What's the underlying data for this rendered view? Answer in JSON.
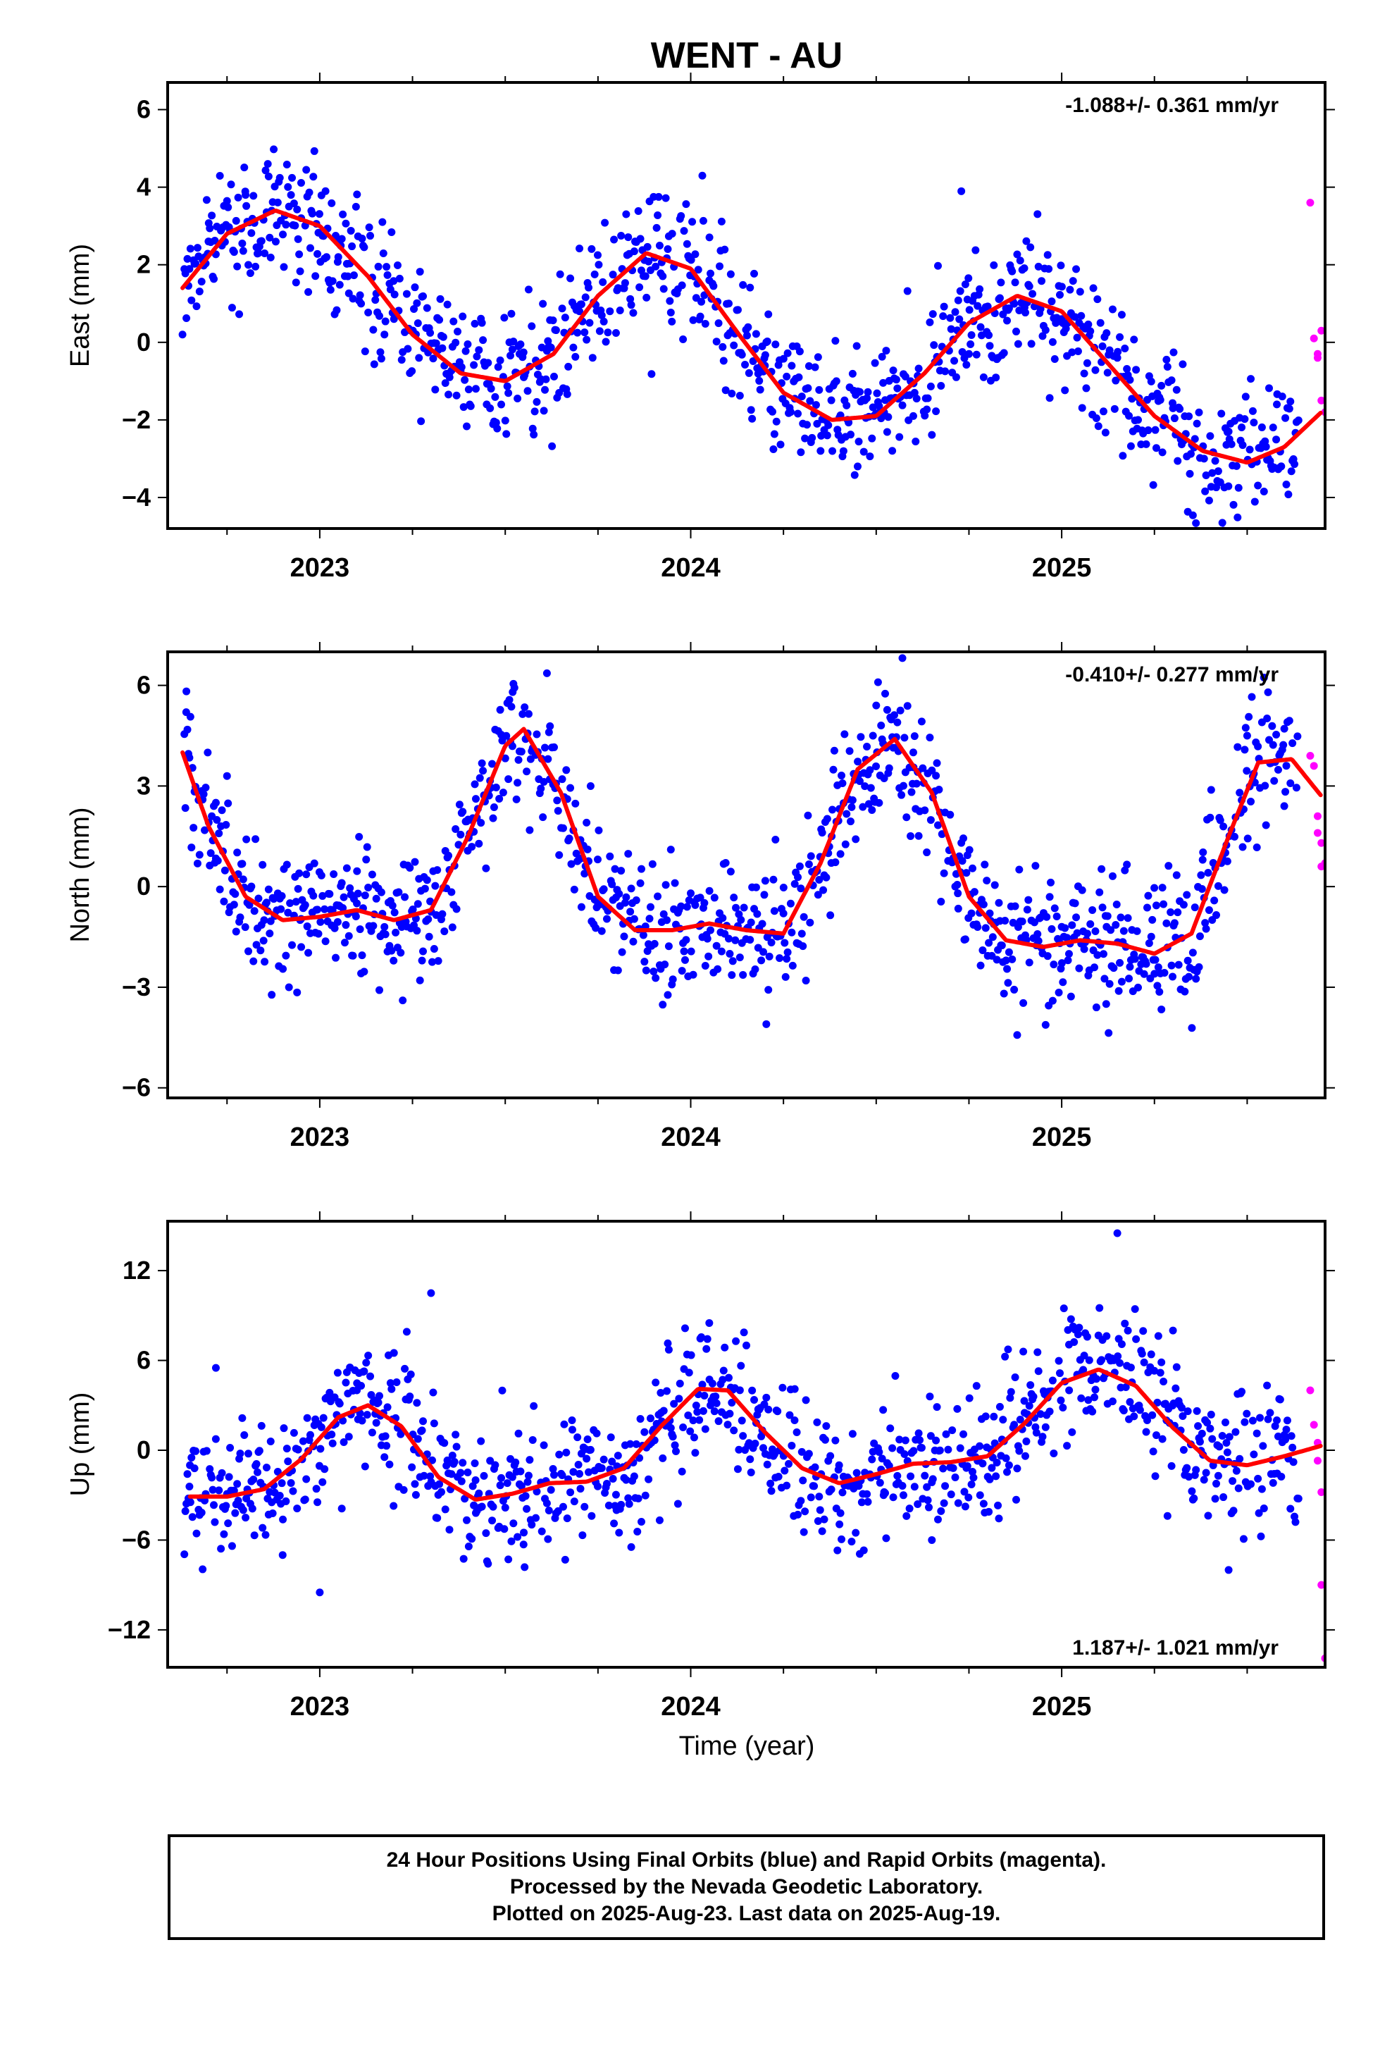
{
  "title": "WENT - AU",
  "colors": {
    "final": "#0000ff",
    "rapid": "#ff00ff",
    "fit": "#ff0000",
    "frame": "#000000"
  },
  "xlabel": "Time (year)",
  "caption": [
    "24 Hour Positions Using Final Orbits (blue) and Rapid Orbits (magenta).",
    "Processed by the Nevada Geodetic Laboratory.",
    "Plotted on 2025-Aug-23. Last data on 2025-Aug-19."
  ],
  "chart_data": [
    {
      "type": "scatter",
      "ylabel": "East (mm)",
      "rate_label": "-1.088+/- 0.361 mm/yr",
      "rate_position": "top-right",
      "xlim": [
        2022.59,
        2025.71
      ],
      "ylim": [
        -4.8,
        6.7
      ],
      "xticks": [
        2023,
        2024,
        2025
      ],
      "yticks": [
        -4,
        -2,
        0,
        2,
        4,
        6
      ],
      "fit_curve": {
        "x": [
          2022.63,
          2022.75,
          2022.88,
          2023.0,
          2023.13,
          2023.25,
          2023.38,
          2023.5,
          2023.63,
          2023.75,
          2023.88,
          2024.0,
          2024.13,
          2024.25,
          2024.38,
          2024.5,
          2024.63,
          2024.75,
          2024.88,
          2025.0,
          2025.13,
          2025.25,
          2025.38,
          2025.5,
          2025.6,
          2025.7
        ],
        "y": [
          1.4,
          2.8,
          3.4,
          3.0,
          1.7,
          0.2,
          -0.8,
          -1.0,
          -0.3,
          1.2,
          2.3,
          1.9,
          0.2,
          -1.3,
          -2.0,
          -1.9,
          -0.8,
          0.5,
          1.2,
          0.8,
          -0.6,
          -1.9,
          -2.8,
          -3.1,
          -2.7,
          -1.8
        ]
      },
      "final_points_sample": {
        "x": [
          2022.63,
          2022.7,
          2022.8,
          2022.86,
          2022.95,
          2023.05,
          2023.2,
          2023.35,
          2023.45,
          2023.55,
          2023.7,
          2023.85,
          2023.95,
          2024.05,
          2024.2,
          2024.35,
          2024.45,
          2024.6,
          2024.75,
          2024.9,
          2025.0,
          2025.15,
          2025.3,
          2025.45,
          2025.58
        ],
        "y": [
          0.2,
          2.6,
          3.8,
          4.6,
          3.2,
          2.2,
          0.6,
          -0.9,
          -1.6,
          -0.9,
          0.8,
          2.6,
          2.8,
          1.6,
          -0.6,
          -2.8,
          -3.2,
          -1.9,
          -0.3,
          0.9,
          0.6,
          -0.4,
          -1.7,
          -2.3,
          -1.6
        ]
      },
      "rapid_points": {
        "x": [
          2025.67,
          2025.68,
          2025.69,
          2025.69,
          2025.7,
          2025.7,
          2025.71
        ],
        "y": [
          3.6,
          0.1,
          -0.3,
          -0.4,
          0.3,
          -1.5,
          -1.8
        ]
      }
    },
    {
      "type": "scatter",
      "ylabel": "North (mm)",
      "rate_label": "-0.410+/- 0.277 mm/yr",
      "rate_position": "top-right",
      "xlim": [
        2022.59,
        2025.71
      ],
      "ylim": [
        -6.3,
        7.0
      ],
      "xticks": [
        2023,
        2024,
        2025
      ],
      "yticks": [
        -6,
        -3,
        0,
        3,
        6
      ],
      "fit_curve": {
        "x": [
          2022.63,
          2022.7,
          2022.8,
          2022.9,
          2023.0,
          2023.1,
          2023.2,
          2023.3,
          2023.4,
          2023.5,
          2023.55,
          2023.65,
          2023.75,
          2023.85,
          2023.95,
          2024.05,
          2024.15,
          2024.25,
          2024.35,
          2024.45,
          2024.55,
          2024.65,
          2024.75,
          2024.85,
          2024.95,
          2025.05,
          2025.15,
          2025.25,
          2025.35,
          2025.45,
          2025.53,
          2025.62,
          2025.7
        ],
        "y": [
          4.0,
          1.8,
          -0.3,
          -1.0,
          -0.9,
          -0.7,
          -1.0,
          -0.7,
          1.5,
          4.2,
          4.7,
          2.8,
          -0.3,
          -1.3,
          -1.3,
          -1.1,
          -1.3,
          -1.4,
          0.7,
          3.5,
          4.4,
          2.8,
          -0.3,
          -1.6,
          -1.8,
          -1.6,
          -1.7,
          -2.0,
          -1.4,
          1.5,
          3.7,
          3.8,
          2.7
        ]
      },
      "final_points_sample": {
        "x": [
          2022.64,
          2022.72,
          2022.85,
          2022.95,
          2023.1,
          2023.25,
          2023.4,
          2023.52,
          2023.62,
          2023.75,
          2023.88,
          2024.0,
          2024.12,
          2024.25,
          2024.38,
          2024.5,
          2024.6,
          2024.72,
          2024.85,
          2025.0,
          2025.12,
          2025.25,
          2025.38,
          2025.5,
          2025.6
        ],
        "y": [
          5.2,
          2.5,
          -1.0,
          -1.8,
          -0.5,
          -0.8,
          2.0,
          5.8,
          3.2,
          -0.5,
          -2.5,
          -0.2,
          -1.6,
          -0.8,
          1.5,
          5.4,
          4.0,
          -0.2,
          -2.2,
          -1.2,
          -3.5,
          -2.6,
          0.8,
          4.5,
          2.4
        ]
      },
      "rapid_points": {
        "x": [
          2025.67,
          2025.68,
          2025.69,
          2025.69,
          2025.7,
          2025.7,
          2025.71
        ],
        "y": [
          3.9,
          3.6,
          2.1,
          1.6,
          1.3,
          0.6,
          0.7
        ]
      }
    },
    {
      "type": "scatter",
      "ylabel": "Up (mm)",
      "rate_label": "1.187+/- 1.021 mm/yr",
      "rate_position": "bottom-right",
      "xlim": [
        2022.59,
        2025.71
      ],
      "ylim": [
        -14.5,
        15.3
      ],
      "xticks": [
        2023,
        2024,
        2025
      ],
      "yticks": [
        -12,
        -6,
        0,
        6,
        12
      ],
      "fit_curve": {
        "x": [
          2022.65,
          2022.75,
          2022.85,
          2022.95,
          2023.05,
          2023.13,
          2023.22,
          2023.32,
          2023.42,
          2023.52,
          2023.62,
          2023.72,
          2023.82,
          2023.92,
          2024.02,
          2024.1,
          2024.2,
          2024.3,
          2024.4,
          2024.5,
          2024.6,
          2024.7,
          2024.8,
          2024.9,
          2025.0,
          2025.1,
          2025.2,
          2025.3,
          2025.4,
          2025.5,
          2025.6,
          2025.7
        ],
        "y": [
          -3.1,
          -3.1,
          -2.6,
          -0.6,
          2.2,
          3.0,
          1.6,
          -1.8,
          -3.3,
          -2.9,
          -2.2,
          -2.1,
          -1.2,
          1.6,
          4.1,
          4.0,
          1.2,
          -1.2,
          -2.2,
          -1.6,
          -0.9,
          -0.8,
          -0.4,
          1.8,
          4.5,
          5.4,
          4.3,
          1.5,
          -0.7,
          -1.0,
          -0.4,
          0.3
        ]
      },
      "final_points_sample": {
        "x": [
          2022.65,
          2022.72,
          2022.8,
          2022.9,
          2023.0,
          2023.1,
          2023.2,
          2023.3,
          2023.42,
          2023.55,
          2023.68,
          2023.8,
          2023.92,
          2024.05,
          2024.15,
          2024.28,
          2024.4,
          2024.52,
          2024.65,
          2024.78,
          2024.9,
          2025.02,
          2025.15,
          2025.3,
          2025.45,
          2025.58
        ],
        "y": [
          -1.0,
          5.5,
          -4.5,
          -7.0,
          -9.5,
          4.0,
          6.5,
          10.5,
          -2.0,
          -5.5,
          2.0,
          -4.0,
          2.5,
          8.5,
          7.0,
          2.0,
          -1.0,
          -3.0,
          -6.0,
          -3.0,
          2.5,
          4.0,
          14.5,
          8.0,
          -8.0,
          2.0
        ]
      },
      "rapid_points": {
        "x": [
          2025.67,
          2025.68,
          2025.69,
          2025.69,
          2025.7,
          2025.7,
          2025.71
        ],
        "y": [
          4.0,
          1.7,
          0.5,
          -0.7,
          -2.8,
          -9.0,
          -13.9
        ]
      }
    }
  ]
}
